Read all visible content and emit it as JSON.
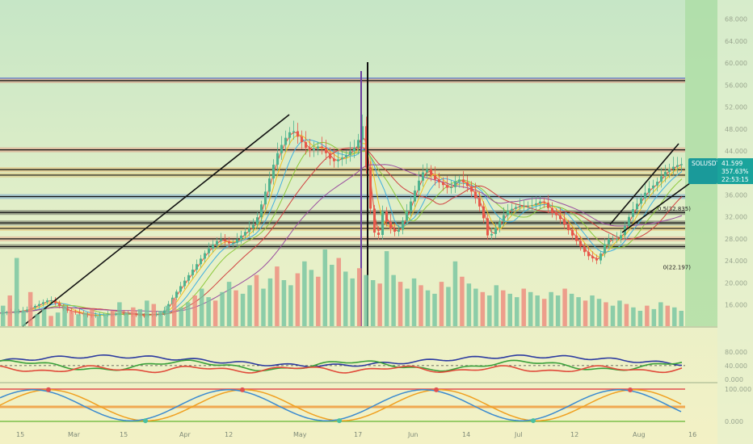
{
  "chart_data": [
    {
      "type": "candlestick",
      "symbol": "SOLUSDT",
      "last_price": "41.599",
      "change_pct": "357.63%",
      "countdown": "22:53:15",
      "y_ticks": [
        "68.000",
        "64.000",
        "60.000",
        "56.000",
        "52.000",
        "48.000",
        "44.000",
        "40.000",
        "36.000",
        "32.000",
        "28.000",
        "24.000",
        "20.000",
        "16.000"
      ],
      "x_ticks": [
        "15",
        "Mar",
        "15",
        "Apr",
        "12",
        "May",
        "17",
        "Jun",
        "14",
        "Jul",
        "12",
        "Aug",
        "16"
      ],
      "ylim": [
        13,
        70
      ],
      "fib_labels": [
        {
          "text": "0.5(32.835)",
          "price": 32.835
        },
        {
          "text": "0(22.197)",
          "price": 22.197
        }
      ],
      "horizontal_levels": [
        56.8,
        44.2,
        40.6,
        39.6,
        35.7,
        32.8,
        30.9,
        29.9,
        28.0,
        26.6
      ],
      "price_path": [
        [
          0,
          14.5
        ],
        [
          30,
          15
        ],
        [
          60,
          17
        ],
        [
          80,
          15
        ],
        [
          110,
          14
        ],
        [
          150,
          14.5
        ],
        [
          175,
          14
        ],
        [
          200,
          14.5
        ],
        [
          215,
          18
        ],
        [
          235,
          22
        ],
        [
          255,
          26
        ],
        [
          270,
          28
        ],
        [
          285,
          27
        ],
        [
          300,
          29
        ],
        [
          315,
          31
        ],
        [
          330,
          38
        ],
        [
          340,
          43
        ],
        [
          350,
          46
        ],
        [
          360,
          48
        ],
        [
          370,
          46
        ],
        [
          380,
          44
        ],
        [
          395,
          45
        ],
        [
          410,
          42
        ],
        [
          425,
          43
        ],
        [
          440,
          45
        ],
        [
          448,
          49
        ],
        [
          452,
          41
        ],
        [
          458,
          32
        ],
        [
          465,
          27
        ],
        [
          472,
          33
        ],
        [
          480,
          30
        ],
        [
          490,
          29
        ],
        [
          505,
          34
        ],
        [
          515,
          38
        ],
        [
          525,
          41
        ],
        [
          535,
          39
        ],
        [
          545,
          38
        ],
        [
          555,
          37
        ],
        [
          565,
          39
        ],
        [
          575,
          38
        ],
        [
          585,
          36
        ],
        [
          595,
          33
        ],
        [
          603,
          28
        ],
        [
          612,
          30
        ],
        [
          625,
          33
        ],
        [
          640,
          34
        ],
        [
          655,
          34
        ],
        [
          670,
          35
        ],
        [
          680,
          33
        ],
        [
          690,
          32
        ],
        [
          705,
          29
        ],
        [
          715,
          27
        ],
        [
          725,
          25
        ],
        [
          738,
          24
        ],
        [
          750,
          28
        ],
        [
          765,
          28
        ],
        [
          780,
          33
        ],
        [
          790,
          35
        ],
        [
          800,
          37
        ],
        [
          810,
          38
        ],
        [
          820,
          40
        ],
        [
          830,
          41
        ],
        [
          840,
          41.6
        ]
      ],
      "volume_series": [
        12,
        18,
        40,
        9,
        20,
        7,
        10,
        6,
        8,
        12,
        9,
        7,
        8,
        10,
        6,
        7,
        9,
        14,
        8,
        11,
        10,
        15,
        13,
        9,
        12,
        16,
        11,
        14,
        18,
        22,
        17,
        15,
        20,
        26,
        21,
        19,
        24,
        30,
        22,
        28,
        35,
        27,
        24,
        31,
        38,
        33,
        29,
        45,
        36,
        40,
        32,
        28,
        34,
        30,
        27,
        25,
        44,
        30,
        26,
        22,
        28,
        24,
        21,
        19,
        26,
        23,
        38,
        29,
        25,
        22,
        20,
        18,
        24,
        21,
        19,
        17,
        22,
        20,
        18,
        16,
        20,
        18,
        22,
        19,
        17,
        15,
        18,
        16,
        14,
        12,
        15,
        13,
        11,
        9,
        12,
        10,
        14,
        12,
        11,
        9
      ],
      "rsi_panel": {
        "ticks": [
          "80.000",
          "40.000",
          "0.000"
        ]
      },
      "stoch_panel": {
        "ticks": [
          "100.000",
          "0.000"
        ]
      }
    }
  ]
}
